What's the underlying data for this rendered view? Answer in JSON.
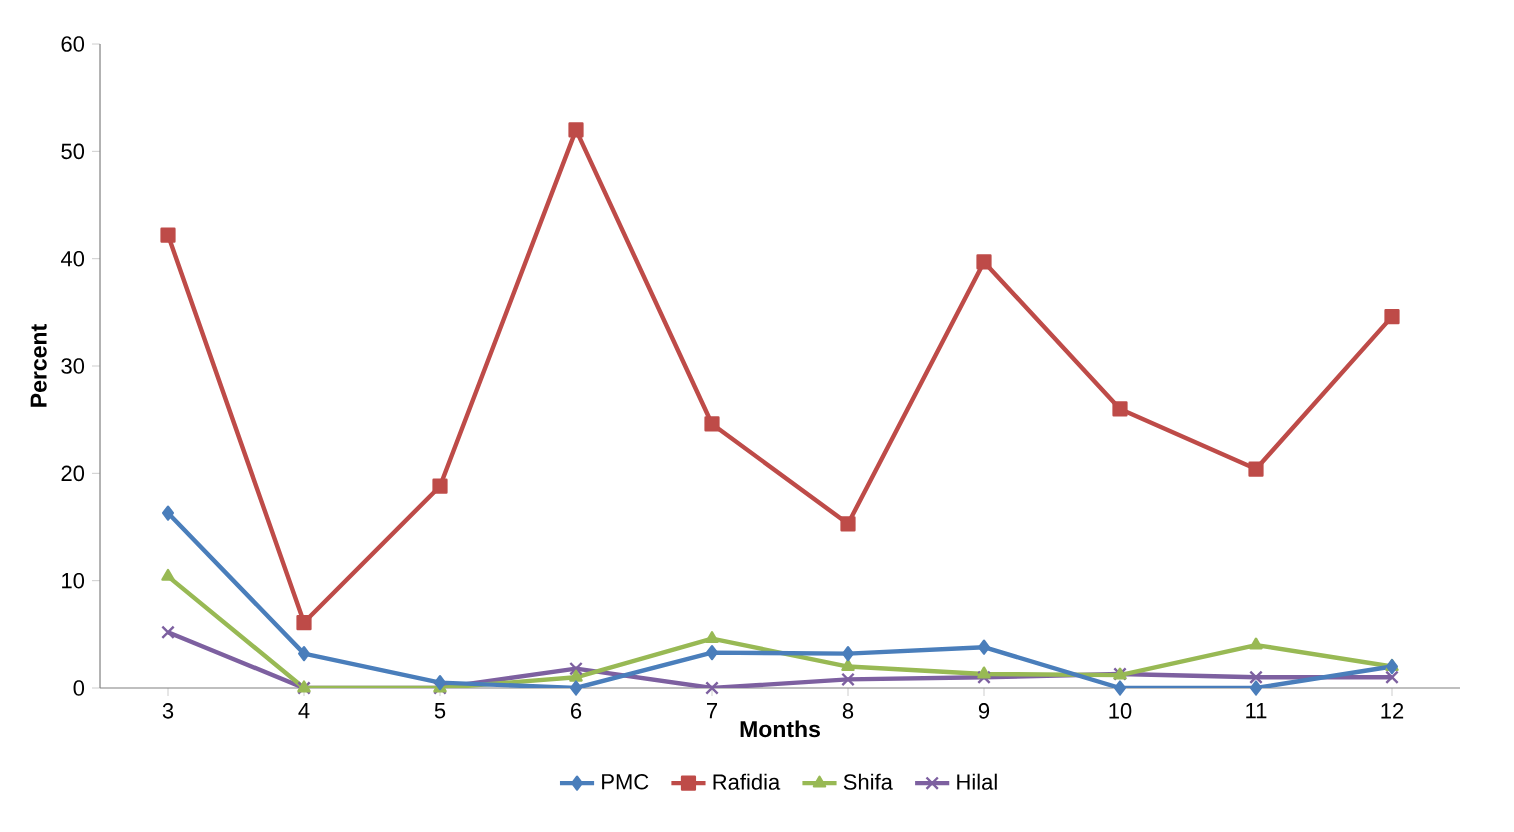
{
  "chart_data": {
    "type": "line",
    "xlabel": "Months",
    "ylabel": "Percent",
    "categories": [
      "3",
      "4",
      "5",
      "6",
      "7",
      "8",
      "9",
      "10",
      "11",
      "12"
    ],
    "ylim": [
      0,
      60
    ],
    "yticks": [
      0,
      10,
      20,
      30,
      40,
      50,
      60
    ],
    "grid": false,
    "legend": "bottom",
    "line_style": "solid",
    "series": [
      {
        "name": "PMC",
        "color": "#4a7ebb",
        "marker": "diamond",
        "values": [
          16.3,
          3.2,
          0.5,
          0,
          3.3,
          3.2,
          3.8,
          0,
          0,
          2
        ]
      },
      {
        "name": "Rafidia",
        "color": "#be4b48",
        "marker": "square",
        "values": [
          42.2,
          6.1,
          18.8,
          52,
          24.6,
          15.3,
          39.7,
          26,
          20.4,
          34.6
        ]
      },
      {
        "name": "Shifa",
        "color": "#98b954",
        "marker": "triangle",
        "values": [
          10.4,
          0,
          0,
          1,
          4.6,
          2,
          1.3,
          1.2,
          4,
          2
        ]
      },
      {
        "name": "Hilal",
        "color": "#7d60a0",
        "marker": "cross",
        "values": [
          5.2,
          0,
          0,
          1.8,
          0,
          0.8,
          1,
          1.3,
          1,
          1
        ]
      }
    ]
  }
}
